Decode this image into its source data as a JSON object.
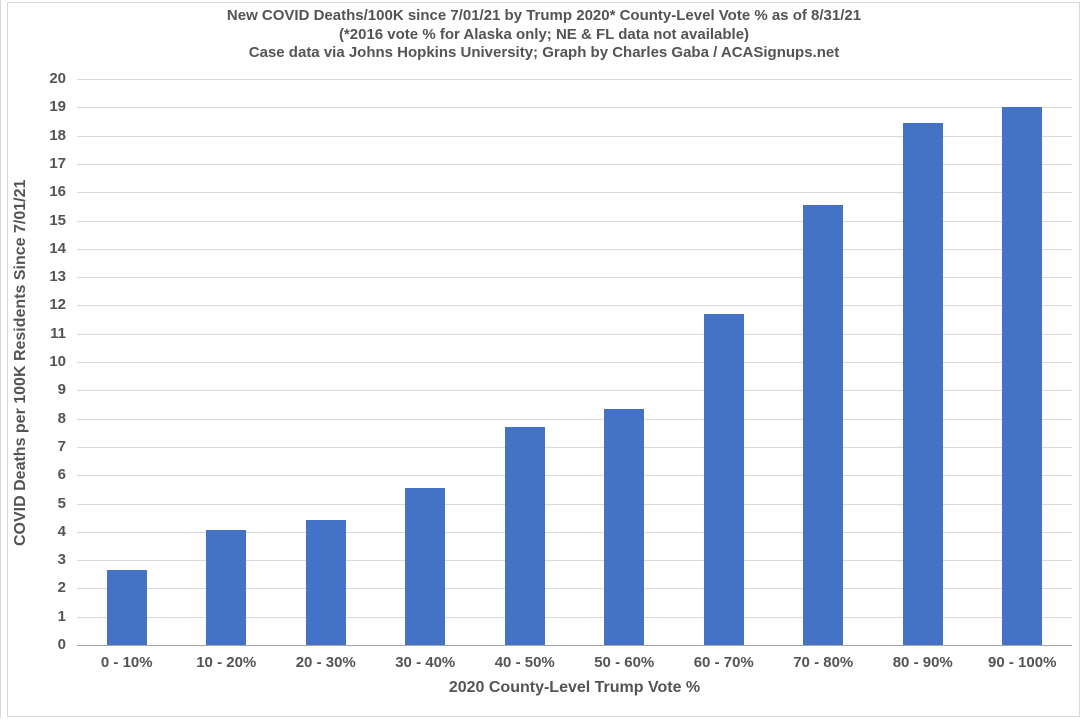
{
  "chart_data": {
    "type": "bar",
    "title": "New COVID Deaths/100K since 7/01/21 by Trump 2020* County-Level Vote % as of 8/31/21",
    "subtitle": "(*2016 vote % for Alaska only; NE & FL data not available)",
    "credit": "Case data via Johns Hopkins University; Graph by Charles Gaba / ACASignups.net",
    "categories": [
      "0 - 10%",
      "10 - 20%",
      "20 - 30%",
      "30 - 40%",
      "40 - 50%",
      "50 - 60%",
      "60 - 70%",
      "70 - 80%",
      "80 - 90%",
      "90 - 100%"
    ],
    "values": [
      2.65,
      4.05,
      4.4,
      5.55,
      7.7,
      8.35,
      11.7,
      15.55,
      18.45,
      19.0
    ],
    "xlabel": "2020 County-Level Trump Vote %",
    "ylabel": "COVID Deaths per 100K Residents Since 7/01/21",
    "ylim": [
      0,
      20
    ],
    "ytick_step": 1,
    "grid": true,
    "legend_position": "none",
    "colors": {
      "bar": "#4472C4",
      "gridline": "#D9D9D9",
      "axis_line": "#A6A6A6",
      "text": "#545454"
    }
  }
}
